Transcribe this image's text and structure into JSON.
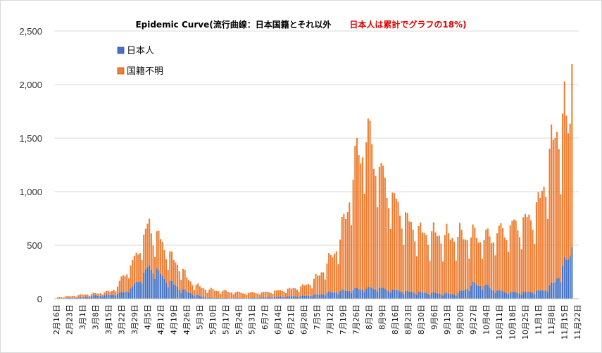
{
  "chart_data": {
    "type": "bar",
    "stacked": true,
    "title": "Epidemic Curve(流行曲線：日本国籍とそれ以外",
    "subtitle": "日本人は累計でグラフの18%)",
    "subtitle_color": "#e00000",
    "ylim": [
      0,
      2500
    ],
    "yticks": [
      "0",
      "500",
      "1,000",
      "1,500",
      "2,000",
      "2,500"
    ],
    "ytick_values": [
      0,
      500,
      1000,
      1500,
      2000,
      2500
    ],
    "xtick_labels": [
      "2月16日",
      "2月23日",
      "3月1日",
      "3月8日",
      "3月15日",
      "3月22日",
      "3月29日",
      "4月5日",
      "4月12日",
      "4月19日",
      "4月26日",
      "5月3日",
      "5月10日",
      "5月17日",
      "5月24日",
      "5月31日",
      "6月7日",
      "6月14日",
      "6月21日",
      "6月28日",
      "7月5日",
      "7月12日",
      "7月19日",
      "7月26日",
      "8月2日",
      "8月9日",
      "8月16日",
      "8月23日",
      "8月30日",
      "9月6日",
      "9月13日",
      "9月20日",
      "9月27日",
      "10月4日",
      "10月11日",
      "10月18日",
      "10月25日",
      "11月1日",
      "11月8日",
      "11月15日",
      "11月22日"
    ],
    "legend": {
      "position": "top-left",
      "entries": [
        "日本人",
        "国籍不明"
      ]
    },
    "colors": {
      "japanese": "#4472c4",
      "unknown": "#ed7d31"
    },
    "grid": true,
    "n_days": 276,
    "japanese_anchors": [
      [
        0,
        1
      ],
      [
        7,
        8
      ],
      [
        14,
        15
      ],
      [
        20,
        30
      ],
      [
        28,
        35
      ],
      [
        35,
        60
      ],
      [
        40,
        110
      ],
      [
        45,
        220
      ],
      [
        49,
        300
      ],
      [
        52,
        290
      ],
      [
        56,
        210
      ],
      [
        60,
        160
      ],
      [
        65,
        100
      ],
      [
        70,
        60
      ],
      [
        75,
        30
      ],
      [
        80,
        10
      ],
      [
        90,
        6
      ],
      [
        100,
        6
      ],
      [
        110,
        12
      ],
      [
        120,
        20
      ],
      [
        130,
        25
      ],
      [
        140,
        40
      ],
      [
        146,
        60
      ],
      [
        152,
        75
      ],
      [
        158,
        85
      ],
      [
        164,
        100
      ],
      [
        168,
        100
      ],
      [
        172,
        100
      ],
      [
        176,
        90
      ],
      [
        180,
        80
      ],
      [
        186,
        70
      ],
      [
        192,
        60
      ],
      [
        200,
        55
      ],
      [
        206,
        50
      ],
      [
        212,
        45
      ],
      [
        216,
        70
      ],
      [
        222,
        140
      ],
      [
        228,
        130
      ],
      [
        234,
        80
      ],
      [
        240,
        65
      ],
      [
        245,
        60
      ],
      [
        250,
        60
      ],
      [
        255,
        70
      ],
      [
        260,
        80
      ],
      [
        266,
        160
      ],
      [
        270,
        300
      ],
      [
        274,
        420
      ],
      [
        275,
        480
      ]
    ],
    "total_anchors": [
      [
        0,
        15
      ],
      [
        7,
        25
      ],
      [
        14,
        40
      ],
      [
        20,
        50
      ],
      [
        28,
        70
      ],
      [
        32,
        120
      ],
      [
        35,
        220
      ],
      [
        38,
        290
      ],
      [
        41,
        370
      ],
      [
        44,
        520
      ],
      [
        47,
        620
      ],
      [
        49,
        720
      ],
      [
        51,
        620
      ],
      [
        54,
        590
      ],
      [
        57,
        480
      ],
      [
        60,
        420
      ],
      [
        63,
        340
      ],
      [
        66,
        300
      ],
      [
        69,
        200
      ],
      [
        72,
        150
      ],
      [
        75,
        120
      ],
      [
        80,
        90
      ],
      [
        90,
        70
      ],
      [
        100,
        55
      ],
      [
        110,
        60
      ],
      [
        115,
        70
      ],
      [
        120,
        80
      ],
      [
        130,
        110
      ],
      [
        135,
        150
      ],
      [
        140,
        230
      ],
      [
        145,
        360
      ],
      [
        148,
        450
      ],
      [
        151,
        580
      ],
      [
        154,
        800
      ],
      [
        157,
        1100
      ],
      [
        160,
        1350
      ],
      [
        163,
        1500
      ],
      [
        166,
        1550
      ],
      [
        169,
        1400
      ],
      [
        172,
        1250
      ],
      [
        175,
        1100
      ],
      [
        178,
        1000
      ],
      [
        181,
        900
      ],
      [
        184,
        820
      ],
      [
        187,
        740
      ],
      [
        190,
        680
      ],
      [
        193,
        640
      ],
      [
        196,
        620
      ],
      [
        199,
        600
      ],
      [
        202,
        620
      ],
      [
        205,
        600
      ],
      [
        208,
        590
      ],
      [
        212,
        600
      ],
      [
        216,
        600
      ],
      [
        220,
        610
      ],
      [
        224,
        600
      ],
      [
        228,
        580
      ],
      [
        232,
        600
      ],
      [
        236,
        640
      ],
      [
        240,
        660
      ],
      [
        244,
        700
      ],
      [
        248,
        720
      ],
      [
        252,
        760
      ],
      [
        256,
        850
      ],
      [
        259,
        1000
      ],
      [
        262,
        1250
      ],
      [
        265,
        1500
      ],
      [
        268,
        1650
      ],
      [
        271,
        1720
      ],
      [
        273,
        1650
      ],
      [
        274,
        1700
      ],
      [
        275,
        2190
      ]
    ]
  }
}
